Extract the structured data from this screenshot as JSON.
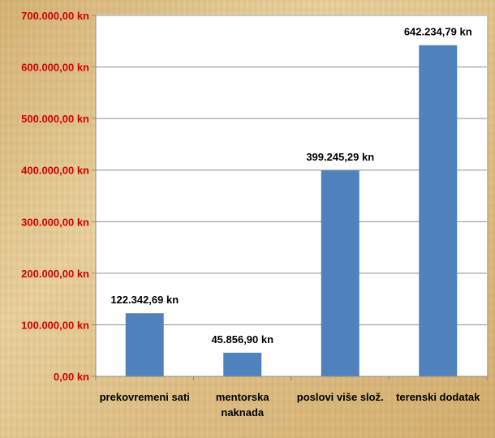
{
  "chart_data": {
    "type": "bar",
    "categories": [
      [
        "prekovremeni sati"
      ],
      [
        "mentorska",
        "naknada"
      ],
      [
        "poslovi više slož."
      ],
      [
        "terenski dodatak"
      ]
    ],
    "values": [
      122342.69,
      45856.9,
      399245.29,
      642234.79
    ],
    "data_labels": [
      "122.342,69 kn",
      "45.856,90 kn",
      "399.245,29 kn",
      "642.234,79 kn"
    ],
    "y_ticks": [
      {
        "value": 0,
        "label": "0,00 kn"
      },
      {
        "value": 100000,
        "label": "100.000,00 kn"
      },
      {
        "value": 200000,
        "label": "200.000,00 kn"
      },
      {
        "value": 300000,
        "label": "300.000,00 kn"
      },
      {
        "value": 400000,
        "label": "400.000,00 kn"
      },
      {
        "value": 500000,
        "label": "500.000,00 kn"
      },
      {
        "value": 600000,
        "label": "600.000,00 kn"
      },
      {
        "value": 700000,
        "label": "700.000,00 kn"
      }
    ],
    "ylim": [
      0,
      700000
    ],
    "grid": true,
    "colors": {
      "bar": "#4f81bd",
      "ytick_text": "#d40000",
      "grid": "#8c8c8c"
    }
  }
}
